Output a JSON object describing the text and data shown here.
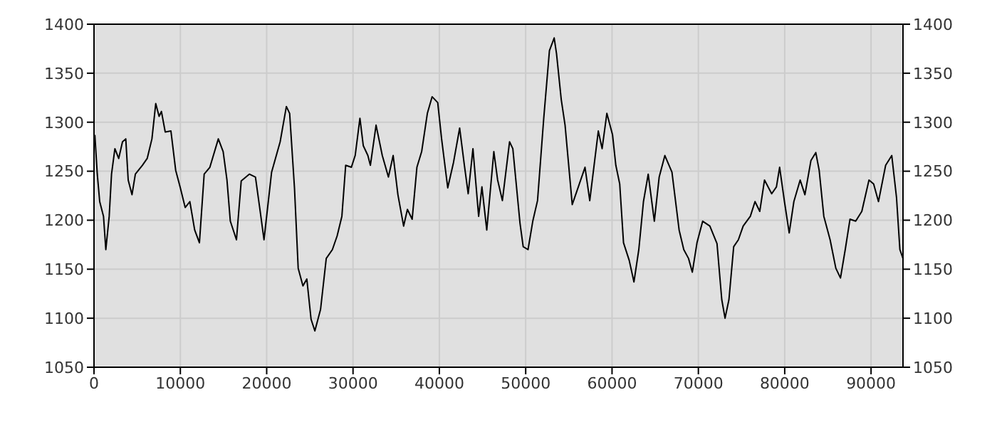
{
  "chart_data": {
    "type": "line",
    "color": "#000000",
    "x": [
      100,
      380,
      660,
      1100,
      1370,
      1760,
      2030,
      2420,
      2860,
      3300,
      3680,
      3960,
      4400,
      4790,
      5600,
      6160,
      6710,
      7150,
      7540,
      7810,
      8250,
      8910,
      9460,
      10000,
      10560,
      11100,
      11660,
      12210,
      12760,
      13420,
      14400,
      14960,
      15400,
      15790,
      16500,
      17050,
      17990,
      18700,
      19250,
      19690,
      20570,
      21560,
      22280,
      22660,
      23220,
      23650,
      24200,
      24650,
      25140,
      25580,
      26240,
      26900,
      27610,
      28160,
      28710,
      29150,
      29810,
      30250,
      30800,
      31190,
      31720,
      32010,
      32670,
      33390,
      34100,
      34650,
      35200,
      35860,
      36300,
      36850,
      37400,
      37950,
      38610,
      39160,
      39810,
      40260,
      40970,
      41640,
      42350,
      42900,
      43340,
      43890,
      44550,
      44930,
      45490,
      46310,
      46750,
      47300,
      48130,
      48510,
      49340,
      49710,
      50270,
      50820,
      51370,
      52090,
      52750,
      53300,
      53570,
      54120,
      54560,
      55390,
      55940,
      56870,
      57420,
      58410,
      58850,
      59400,
      60060,
      60440,
      60890,
      61330,
      61990,
      62540,
      63100,
      63640,
      64190,
      64900,
      65460,
      66120,
      66940,
      67770,
      68310,
      68860,
      69300,
      69840,
      70500,
      71330,
      72160,
      72710,
      73090,
      73540,
      74090,
      74630,
      75190,
      76020,
      76560,
      77110,
      77660,
      78490,
      79040,
      79410,
      79970,
      80520,
      81060,
      81790,
      82340,
      83040,
      83600,
      83990,
      84530,
      85260,
      85920,
      86460,
      87010,
      87560,
      88220,
      88930,
      89760,
      90300,
      90860,
      91690,
      92400,
      92950,
      93340,
      93700
    ],
    "values": [
      1287,
      1247,
      1219,
      1204,
      1170,
      1204,
      1247,
      1273,
      1263,
      1280,
      1283,
      1241,
      1226,
      1247,
      1256,
      1263,
      1283,
      1319,
      1306,
      1311,
      1290,
      1291,
      1251,
      1233,
      1213,
      1219,
      1190,
      1177,
      1247,
      1254,
      1283,
      1270,
      1241,
      1199,
      1180,
      1240,
      1247,
      1244,
      1209,
      1180,
      1249,
      1280,
      1316,
      1309,
      1233,
      1151,
      1133,
      1140,
      1099,
      1087,
      1109,
      1161,
      1170,
      1184,
      1204,
      1256,
      1254,
      1266,
      1304,
      1276,
      1266,
      1256,
      1297,
      1266,
      1244,
      1266,
      1226,
      1194,
      1211,
      1201,
      1254,
      1270,
      1309,
      1326,
      1320,
      1283,
      1233,
      1259,
      1294,
      1256,
      1227,
      1273,
      1204,
      1234,
      1190,
      1270,
      1241,
      1220,
      1280,
      1273,
      1197,
      1173,
      1170,
      1199,
      1220,
      1304,
      1373,
      1386,
      1370,
      1323,
      1297,
      1216,
      1230,
      1254,
      1220,
      1291,
      1273,
      1309,
      1287,
      1256,
      1237,
      1177,
      1159,
      1137,
      1170,
      1219,
      1247,
      1199,
      1244,
      1266,
      1249,
      1190,
      1170,
      1161,
      1147,
      1177,
      1199,
      1194,
      1176,
      1119,
      1100,
      1119,
      1173,
      1180,
      1194,
      1204,
      1219,
      1209,
      1241,
      1227,
      1234,
      1254,
      1219,
      1187,
      1219,
      1241,
      1226,
      1261,
      1269,
      1251,
      1204,
      1180,
      1151,
      1141,
      1170,
      1201,
      1199,
      1209,
      1241,
      1237,
      1219,
      1256,
      1266,
      1223,
      1170,
      1161
    ],
    "xlim": [
      0,
      93700
    ],
    "xticks": [
      0,
      10000,
      20000,
      30000,
      40000,
      50000,
      60000,
      70000,
      80000,
      90000
    ],
    "ylim": [
      1050,
      1400
    ],
    "yticks": [
      1050,
      1100,
      1150,
      1200,
      1250,
      1300,
      1350,
      1400
    ],
    "y2lim": [
      1050,
      1400
    ],
    "y2ticks": [
      1050,
      1100,
      1150,
      1200,
      1250,
      1300,
      1350,
      1400
    ],
    "grid": true,
    "legend": false,
    "marker": "none",
    "line_style": "solid"
  }
}
